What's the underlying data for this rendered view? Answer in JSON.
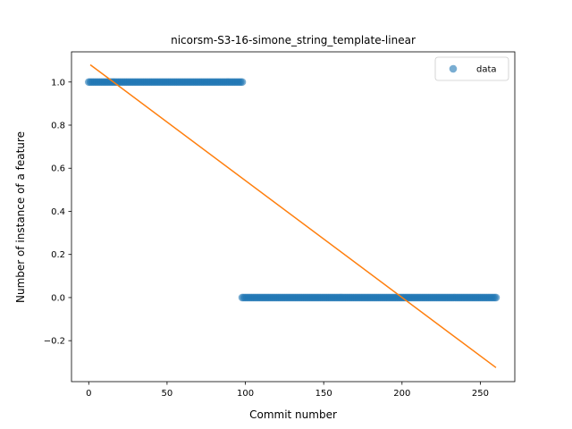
{
  "chart_data": {
    "type": "scatter",
    "title": "nicorsm-S3-16-simone_string_template-linear",
    "xlabel": "Commit number",
    "ylabel": "Number of instance of a feature",
    "xlim": [
      -11,
      272
    ],
    "ylim": [
      -0.39,
      1.14
    ],
    "xticks": [
      0,
      50,
      100,
      150,
      200,
      250
    ],
    "yticks": [
      -0.2,
      0.0,
      0.2,
      0.4,
      0.6,
      0.8,
      1.0
    ],
    "xtick_labels": [
      "0",
      "50",
      "100",
      "150",
      "200",
      "250"
    ],
    "ytick_labels": [
      "−0.2",
      "0.0",
      "0.2",
      "0.4",
      "0.6",
      "0.8",
      "1.0"
    ],
    "grid": false,
    "legend_position": "top-right",
    "series": [
      {
        "name": "data",
        "kind": "scatter",
        "color": "#1f77b4",
        "segments": [
          {
            "x_start": 0,
            "x_end": 98,
            "y": 1.0
          },
          {
            "x_start": 98,
            "x_end": 260,
            "y": 0.0
          }
        ]
      },
      {
        "kind": "line",
        "color": "#ff7f0e",
        "x": [
          1,
          260
        ],
        "y": [
          1.08,
          -0.325
        ]
      }
    ]
  }
}
